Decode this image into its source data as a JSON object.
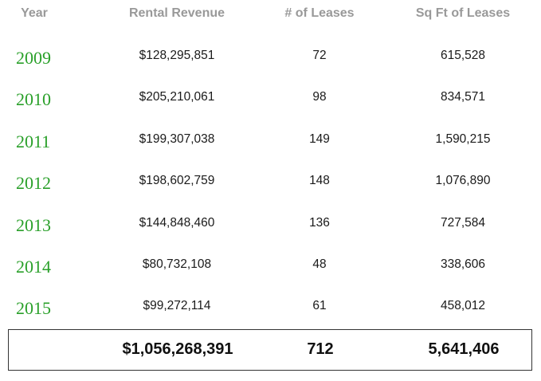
{
  "table": {
    "headers": {
      "year": "Year",
      "rental_revenue": "Rental Revenue",
      "num_leases": "# of Leases",
      "sq_ft": "Sq Ft of Leases"
    },
    "rows": [
      {
        "year": "2009",
        "rental_revenue": "$128,295,851",
        "num_leases": "72",
        "sq_ft": "615,528"
      },
      {
        "year": "2010",
        "rental_revenue": "$205,210,061",
        "num_leases": "98",
        "sq_ft": "834,571"
      },
      {
        "year": "2011",
        "rental_revenue": "$199,307,038",
        "num_leases": "149",
        "sq_ft": "1,590,215"
      },
      {
        "year": "2012",
        "rental_revenue": "$198,602,759",
        "num_leases": "148",
        "sq_ft": "1,076,890"
      },
      {
        "year": "2013",
        "rental_revenue": "$144,848,460",
        "num_leases": "136",
        "sq_ft": "727,584"
      },
      {
        "year": "2014",
        "rental_revenue": "$80,732,108",
        "num_leases": "48",
        "sq_ft": "338,606"
      },
      {
        "year": "2015",
        "rental_revenue": "$99,272,114",
        "num_leases": "61",
        "sq_ft": "458,012"
      }
    ],
    "totals": {
      "rental_revenue": "$1,056,268,391",
      "num_leases": "712",
      "sq_ft": "5,641,406"
    }
  },
  "colors": {
    "year_text": "#2aa02a",
    "header_text": "#999999",
    "body_text": "#1a1a1a",
    "total_border": "#333333"
  }
}
